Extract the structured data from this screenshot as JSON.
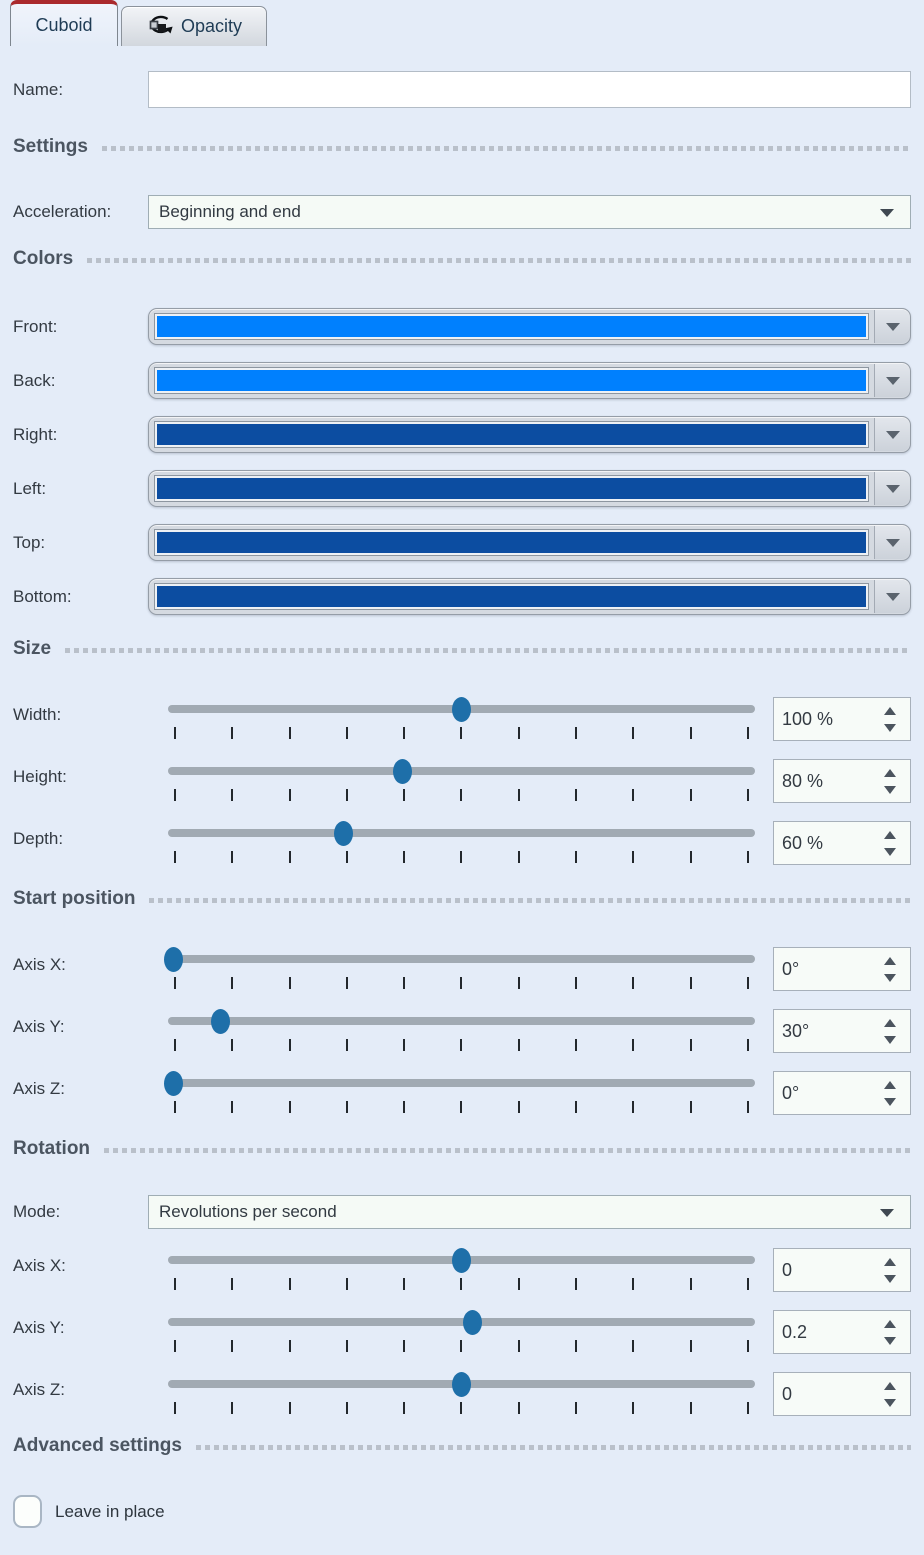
{
  "tabs": {
    "cuboid": {
      "label": "Cuboid",
      "active": true
    },
    "opacity": {
      "label": "Opacity",
      "active": false,
      "icon": "rotation-icon"
    }
  },
  "theme": {
    "accent_red": "#aa2a2d",
    "slider_thumb": "#1e6fa9",
    "front_back_color": "#0080fe",
    "side_color": "#0c4da1",
    "background": "#e4ecf8"
  },
  "name_row": {
    "label": "Name:",
    "value": "",
    "placeholder": ""
  },
  "headers": {
    "settings": "Settings",
    "colors": "Colors",
    "size": "Size",
    "start_position": "Start position",
    "rotation": "Rotation",
    "advanced": "Advanced settings"
  },
  "acceleration": {
    "label": "Acceleration:",
    "value": "Beginning and end"
  },
  "color_rows": [
    {
      "label": "Front:",
      "color": "#0080fe"
    },
    {
      "label": "Back:",
      "color": "#0080fe"
    },
    {
      "label": "Right:",
      "color": "#0c4da1"
    },
    {
      "label": "Left:",
      "color": "#0c4da1"
    },
    {
      "label": "Top:",
      "color": "#0c4da1"
    },
    {
      "label": "Bottom:",
      "color": "#0c4da1"
    }
  ],
  "size_sliders": [
    {
      "label": "Width:",
      "value": "100 %",
      "percent": 50
    },
    {
      "label": "Height:",
      "value": "80 %",
      "percent": 40
    },
    {
      "label": "Depth:",
      "value": "60 %",
      "percent": 30
    }
  ],
  "start_sliders": [
    {
      "label": "Axis X:",
      "value": "0°",
      "percent": 1
    },
    {
      "label": "Axis Y:",
      "value": "30°",
      "percent": 9
    },
    {
      "label": "Axis Z:",
      "value": "0°",
      "percent": 1
    }
  ],
  "rotation": {
    "mode": {
      "label": "Mode:",
      "value": "Revolutions per second"
    },
    "sliders": [
      {
        "label": "Axis X:",
        "value": "0",
        "percent": 50
      },
      {
        "label": "Axis Y:",
        "value": "0.2",
        "percent": 52
      },
      {
        "label": "Axis Z:",
        "value": "0",
        "percent": 50
      }
    ]
  },
  "advanced": {
    "checkbox_label": "Leave in place",
    "checked": false
  }
}
